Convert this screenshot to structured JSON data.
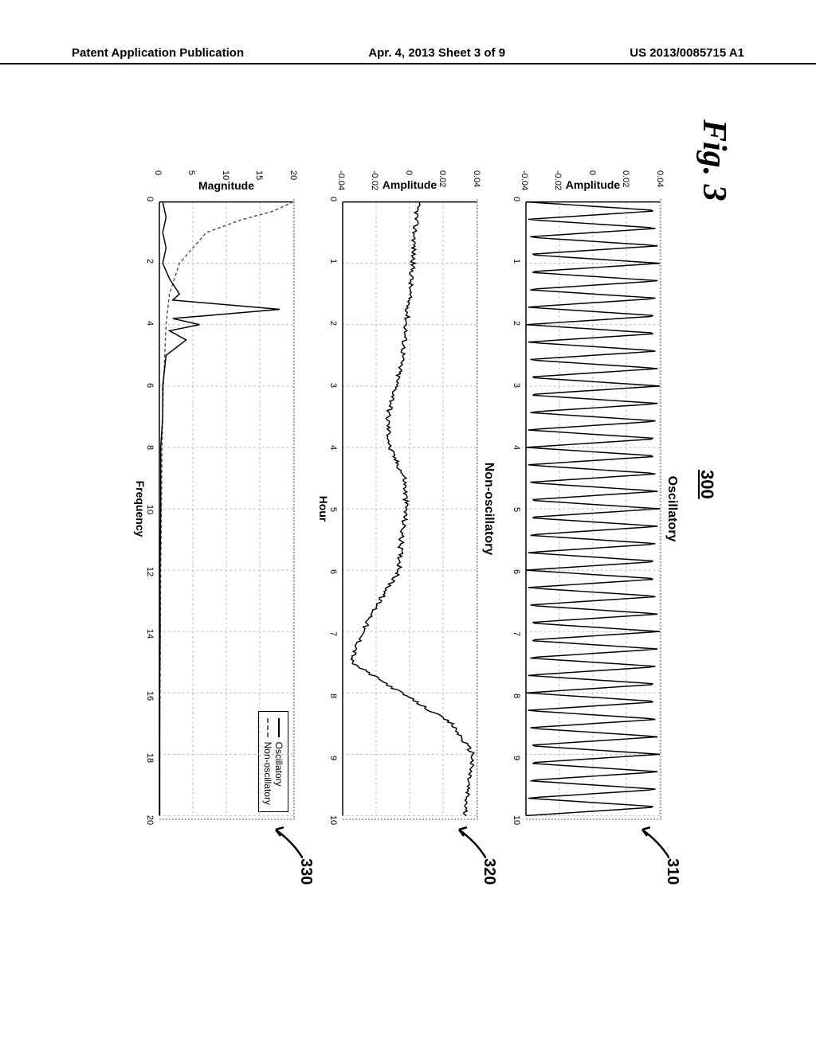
{
  "header": {
    "left": "Patent Application Publication",
    "center": "Apr. 4, 2013  Sheet 3 of 9",
    "right": "US 2013/0085715 A1"
  },
  "figure": {
    "label": "Fig. 3",
    "number": "300",
    "callouts": {
      "chart1": "310",
      "chart2": "320",
      "chart3": "330"
    }
  },
  "chart1": {
    "type": "line",
    "title": "Oscillatory",
    "ylabel": "Amplitude",
    "xlim": [
      0,
      10
    ],
    "ylim": [
      -0.04,
      0.04
    ],
    "xticks": [
      0,
      1,
      2,
      3,
      4,
      5,
      6,
      7,
      8,
      9,
      10
    ],
    "yticks": [
      -0.04,
      -0.02,
      0,
      0.02,
      0.04
    ],
    "frequency": 3.5,
    "amplitude": 0.04,
    "background_color": "#ffffff",
    "grid_color": "#bbbbbb",
    "line_color": "#000000"
  },
  "chart2": {
    "type": "line",
    "title": "Non-oscillatory",
    "ylabel": "Amplitude",
    "xlabel": "Hour",
    "xlim": [
      0,
      10
    ],
    "ylim": [
      -0.04,
      0.04
    ],
    "xticks": [
      0,
      1,
      2,
      3,
      4,
      5,
      6,
      7,
      8,
      9,
      10
    ],
    "yticks": [
      -0.04,
      -0.02,
      0,
      0.02,
      0.04
    ],
    "data_x": [
      0,
      0.5,
      1,
      1.5,
      2,
      2.5,
      3,
      3.5,
      4,
      4.5,
      5,
      5.5,
      6,
      6.5,
      7,
      7.5,
      8,
      8.5,
      9,
      9.5,
      10
    ],
    "data_y": [
      0.005,
      0.003,
      0.002,
      0,
      -0.002,
      -0.004,
      -0.008,
      -0.013,
      -0.012,
      -0.003,
      -0.002,
      -0.005,
      -0.006,
      -0.018,
      -0.028,
      -0.035,
      -0.005,
      0.025,
      0.038,
      0.035,
      0.033
    ],
    "noise_amplitude": 0.003,
    "background_color": "#ffffff",
    "grid_color": "#bbbbbb",
    "line_color": "#000000"
  },
  "chart3": {
    "type": "line",
    "ylabel": "Magnitude",
    "xlabel": "Frequency",
    "xlim": [
      0,
      20
    ],
    "ylim": [
      0,
      20
    ],
    "xticks": [
      0,
      2,
      4,
      6,
      8,
      10,
      12,
      14,
      16,
      18,
      20
    ],
    "yticks": [
      0,
      5,
      10,
      15,
      20
    ],
    "legend": {
      "items": [
        "Oscillatory",
        "Non-oscillatory"
      ]
    },
    "osc_data_x": [
      0,
      0.5,
      1,
      1.5,
      2,
      2.5,
      3,
      3.2,
      3.5,
      3.8,
      4,
      4.2,
      4.5,
      5,
      6,
      7,
      8,
      10,
      12,
      14,
      16,
      18,
      20
    ],
    "osc_data_y": [
      0.5,
      1,
      0.5,
      1,
      0.5,
      1.5,
      3,
      2,
      18,
      2,
      6,
      1.5,
      4,
      1,
      0.5,
      0.5,
      0.2,
      0.2,
      0.1,
      0.1,
      0.05,
      0.05,
      0.05
    ],
    "non_data_x": [
      0,
      0.3,
      0.6,
      1,
      1.5,
      2,
      3,
      4,
      5,
      6,
      8,
      10,
      12,
      14,
      16,
      18,
      20
    ],
    "non_data_y": [
      20,
      17,
      12,
      7,
      5,
      3,
      1.5,
      1,
      0.8,
      0.6,
      0.4,
      0.3,
      0.2,
      0.15,
      0.1,
      0.05,
      0.05
    ],
    "background_color": "#ffffff",
    "grid_color": "#bbbbbb",
    "line_color": "#000000"
  }
}
